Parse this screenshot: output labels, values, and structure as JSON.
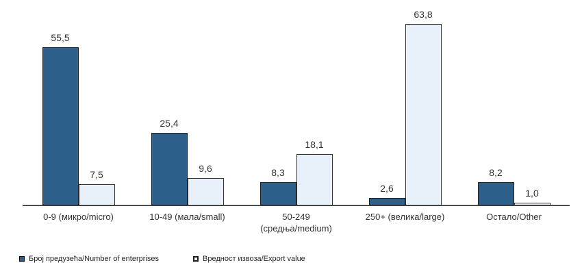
{
  "chart_data": {
    "type": "bar",
    "categories": [
      "0-9 (микро/micro)",
      "10-49 (мала/small)",
      "50-249\n(средња/medium)",
      "250+ (велика/large)",
      "Остало/Other"
    ],
    "series": [
      {
        "name": "Број предузећа/Number of enterprises",
        "color": "#2D5F8B",
        "border_color": "#1f1f1f",
        "values": [
          55.5,
          25.4,
          8.3,
          2.6,
          8.2
        ],
        "value_labels": [
          "55,5",
          "25,4",
          "8,3",
          "2,6",
          "8,2"
        ]
      },
      {
        "name": "Вредност извоза/Export value",
        "color": "#E8F1F9",
        "border_color": "#333333",
        "values": [
          7.5,
          9.6,
          18.1,
          63.8,
          1.0
        ],
        "value_labels": [
          "7,5",
          "9,6",
          "18,1",
          "63,8",
          "1,0"
        ]
      }
    ],
    "title": "",
    "xlabel": "",
    "ylabel": "",
    "ylim": [
      0,
      70
    ],
    "grid": false,
    "y_axis_visible": false,
    "axis_color": "#4d4d4d",
    "label_color": "#333333",
    "legend_position": "bottom-left",
    "decimal_separator": ","
  }
}
